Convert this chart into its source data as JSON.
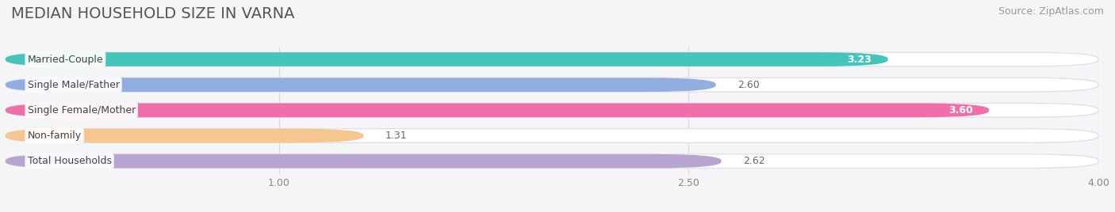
{
  "title": "MEDIAN HOUSEHOLD SIZE IN VARNA",
  "source": "Source: ZipAtlas.com",
  "categories": [
    "Married-Couple",
    "Single Male/Father",
    "Single Female/Mother",
    "Non-family",
    "Total Households"
  ],
  "values": [
    3.23,
    2.6,
    3.6,
    1.31,
    2.62
  ],
  "bar_colors": [
    "#45c4bc",
    "#92aee0",
    "#f06faa",
    "#f5c78e",
    "#b5a5d0"
  ],
  "value_inside": [
    true,
    false,
    true,
    false,
    false
  ],
  "xlim": [
    0,
    4.0
  ],
  "xticks": [
    1.0,
    2.5,
    4.0
  ],
  "xtick_labels": [
    "1.00",
    "2.50",
    "4.00"
  ],
  "background_color": "#f5f5f8",
  "track_color": "#ffffff",
  "track_edge_color": "#e0e0e8",
  "title_fontsize": 14,
  "source_fontsize": 9,
  "label_fontsize": 9,
  "value_fontsize": 9,
  "bar_height": 0.55,
  "bar_gap": 0.45
}
